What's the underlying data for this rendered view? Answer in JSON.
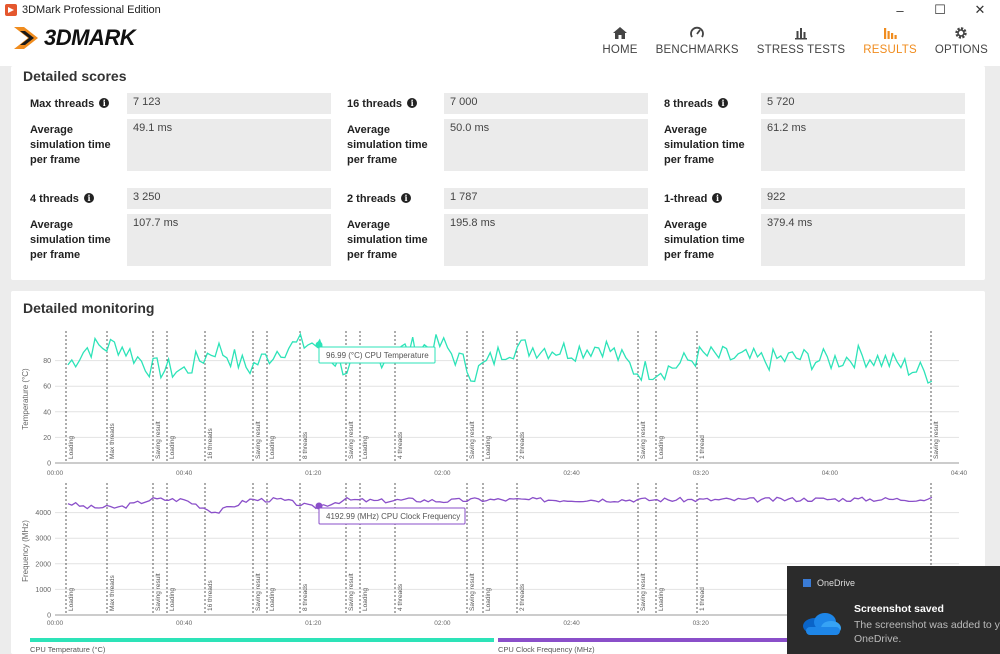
{
  "window": {
    "title": "3DMark Professional Edition",
    "minimize": "–",
    "maximize": "☐",
    "close": "✕"
  },
  "logo": {
    "text": "3DMARK"
  },
  "nav": [
    {
      "id": "home",
      "label": "HOME",
      "icon": "home-icon"
    },
    {
      "id": "benchmarks",
      "label": "BENCHMARKS",
      "icon": "gauge-icon"
    },
    {
      "id": "stress",
      "label": "STRESS TESTS",
      "icon": "stress-chart-icon"
    },
    {
      "id": "results",
      "label": "RESULTS",
      "icon": "bar-chart-icon",
      "active": true
    },
    {
      "id": "options",
      "label": "OPTIONS",
      "icon": "gear-icon"
    }
  ],
  "colors": {
    "accent": "#f08c1e",
    "temp": "#2de3b8",
    "freq": "#8a4fc9"
  },
  "detailed_scores": {
    "title": "Detailed scores",
    "avg_label_lines": [
      "Average",
      "simulation time",
      "per frame"
    ],
    "groups": [
      {
        "label": "Max threads",
        "score": "7 123",
        "avg": "49.1 ms"
      },
      {
        "label": "16 threads",
        "score": "7 000",
        "avg": "50.0 ms"
      },
      {
        "label": "8 threads",
        "score": "5 720",
        "avg": "61.2 ms"
      },
      {
        "label": "4 threads",
        "score": "3 250",
        "avg": "107.7 ms"
      },
      {
        "label": "2 threads",
        "score": "1 787",
        "avg": "195.8 ms"
      },
      {
        "label": "1-thread",
        "score": "922",
        "avg": "379.4 ms"
      }
    ]
  },
  "monitoring": {
    "title": "Detailed monitoring",
    "time_ticks": [
      "00:00",
      "00:40",
      "01:20",
      "02:00",
      "02:40",
      "03:20",
      "04:00",
      "04:40"
    ],
    "phase_markers": [
      "Loading",
      "Max threads",
      "Saving result",
      "Loading",
      "16 threads",
      "Saving result",
      "Loading",
      "8 threads",
      "Saving result",
      "Loading",
      "4 threads",
      "Saving result",
      "Loading",
      "2 threads",
      "Saving result",
      "Loading",
      "1 thread",
      "Saving result"
    ],
    "temp_chart": {
      "ylabel": "Temperature (°C)",
      "yticks": [
        "0",
        "20",
        "40",
        "60",
        "80"
      ],
      "tooltip": "96.99 (°C) CPU Temperature",
      "legend": "CPU Temperature (°C)"
    },
    "freq_chart": {
      "ylabel": "Frequency (MHz)",
      "yticks": [
        "0",
        "1000",
        "2000",
        "3000",
        "4000"
      ],
      "tooltip": "4192.99 (MHz) CPU Clock Frequency",
      "legend": "CPU Clock Frequency (MHz)"
    }
  },
  "chart_data": [
    {
      "type": "line",
      "title": "",
      "xlabel": "",
      "ylabel": "Temperature (°C)",
      "ylim": [
        0,
        100
      ],
      "x_unit": "mm:ss",
      "series": [
        {
          "name": "CPU Temperature (°C)",
          "x": [
            "00:00",
            "00:10",
            "00:20",
            "00:30",
            "00:40",
            "00:50",
            "01:00",
            "01:10",
            "01:20",
            "01:30",
            "01:40",
            "01:50",
            "02:00",
            "02:10",
            "02:20",
            "02:30",
            "02:40",
            "02:50",
            "03:00",
            "03:10",
            "03:20",
            "03:30",
            "03:40",
            "03:50",
            "04:00",
            "04:10",
            "04:20",
            "04:30"
          ],
          "y": [
            68,
            90,
            92,
            74,
            72,
            90,
            74,
            90,
            94,
            74,
            82,
            90,
            92,
            70,
            90,
            90,
            88,
            92,
            72,
            74,
            84,
            82,
            80,
            82,
            80,
            84,
            78,
            70
          ]
        }
      ]
    },
    {
      "type": "line",
      "title": "",
      "xlabel": "",
      "ylabel": "Frequency (MHz)",
      "ylim": [
        0,
        5000
      ],
      "x_unit": "mm:ss",
      "series": [
        {
          "name": "CPU Clock Frequency (MHz)",
          "x": [
            "00:00",
            "00:10",
            "00:20",
            "00:30",
            "00:40",
            "00:50",
            "01:00",
            "01:10",
            "01:20",
            "01:30",
            "01:40",
            "01:50",
            "02:00",
            "02:10",
            "02:20",
            "02:30",
            "02:40",
            "02:50",
            "03:00",
            "03:10",
            "03:20",
            "03:30",
            "03:40",
            "03:50",
            "04:00",
            "04:10",
            "04:20",
            "04:30"
          ],
          "y": [
            4500,
            4200,
            4200,
            4520,
            4500,
            4000,
            4500,
            4500,
            4200,
            4500,
            4450,
            4500,
            4450,
            4500,
            4500,
            4500,
            4500,
            4500,
            4500,
            4500,
            4500,
            4500,
            4500,
            4520,
            4520,
            4520,
            4520,
            4520
          ]
        }
      ]
    }
  ],
  "toast": {
    "app": "OneDrive",
    "title": "Screenshot saved",
    "message_lines": [
      "The screenshot was added to y",
      "OneDrive."
    ]
  }
}
